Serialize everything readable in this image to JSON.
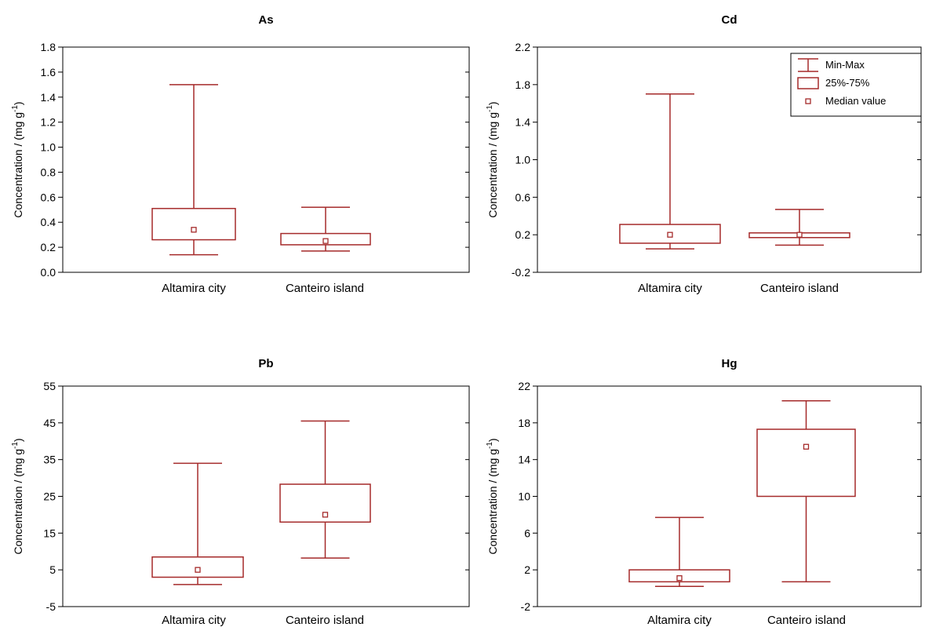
{
  "colors": {
    "box": "#a52a2a",
    "frame": "#000000",
    "background": "#ffffff"
  },
  "legend": {
    "location": "top-right of Cd panel",
    "items": [
      {
        "symbol": "whisker",
        "label": "Min-Max"
      },
      {
        "symbol": "box",
        "label": "25%-75%"
      },
      {
        "symbol": "median",
        "label": "Median value"
      }
    ]
  },
  "chart_data": [
    {
      "type": "box",
      "title": "As",
      "ylabel_main": "Concentration / (mg g",
      "ylabel_sup": "-1",
      "ylabel_end": ")",
      "ylim": [
        0,
        1.8
      ],
      "yticks": [
        0.0,
        0.2,
        0.4,
        0.6,
        0.8,
        1.0,
        1.2,
        1.4,
        1.6,
        1.8
      ],
      "ytick_labels": [
        "0.0",
        "0.2",
        "0.4",
        "0.6",
        "0.8",
        "1.0",
        "1.2",
        "1.4",
        "1.6",
        "1.8"
      ],
      "categories": [
        "Altamira city",
        "Canteiro island"
      ],
      "boxes": [
        {
          "min": 0.14,
          "q1": 0.26,
          "median": 0.34,
          "q3": 0.51,
          "max": 1.5
        },
        {
          "min": 0.17,
          "q1": 0.22,
          "median": 0.25,
          "q3": 0.31,
          "max": 0.52
        }
      ]
    },
    {
      "type": "box",
      "title": "Cd",
      "ylabel_main": "Concentration / (mg g",
      "ylabel_sup": "-1",
      "ylabel_end": ")",
      "ylim": [
        -0.2,
        2.2
      ],
      "yticks": [
        -0.2,
        0.2,
        0.6,
        1.0,
        1.4,
        1.8,
        2.2
      ],
      "ytick_labels": [
        "-0.2",
        "0.2",
        "0.6",
        "1.0",
        "1.4",
        "1.8",
        "2.2"
      ],
      "categories": [
        "Altamira city",
        "Canteiro island"
      ],
      "boxes": [
        {
          "min": 0.05,
          "q1": 0.11,
          "median": 0.2,
          "q3": 0.31,
          "max": 1.7
        },
        {
          "min": 0.09,
          "q1": 0.17,
          "median": 0.2,
          "q3": 0.22,
          "max": 0.47
        }
      ]
    },
    {
      "type": "box",
      "title": "Pb",
      "ylabel_main": "Concentration / (mg g",
      "ylabel_sup": "-1",
      "ylabel_end": ")",
      "ylim": [
        -5,
        55
      ],
      "yticks": [
        -5,
        5,
        15,
        25,
        35,
        45,
        55
      ],
      "ytick_labels": [
        "-5",
        "5",
        "15",
        "25",
        "35",
        "45",
        "55"
      ],
      "categories": [
        "Altamira city",
        "Canteiro island"
      ],
      "boxes": [
        {
          "min": 1.0,
          "q1": 3.0,
          "median": 5.0,
          "q3": 8.5,
          "max": 34.0
        },
        {
          "min": 8.2,
          "q1": 18.0,
          "median": 20.0,
          "q3": 28.3,
          "max": 45.5
        }
      ]
    },
    {
      "type": "box",
      "title": "Hg",
      "ylabel_main": "Concentration / (mg g",
      "ylabel_sup": "-1",
      "ylabel_end": ")",
      "ylim": [
        -2,
        22
      ],
      "yticks": [
        -2,
        2,
        6,
        10,
        14,
        18,
        22
      ],
      "ytick_labels": [
        "-2",
        "2",
        "6",
        "10",
        "14",
        "18",
        "22"
      ],
      "categories": [
        "Altamira city",
        "Canteiro island"
      ],
      "boxes": [
        {
          "min": 0.2,
          "q1": 0.7,
          "median": 1.1,
          "q3": 2.0,
          "max": 7.7
        },
        {
          "min": 0.7,
          "q1": 10.0,
          "median": 15.4,
          "q3": 17.3,
          "max": 20.4
        }
      ]
    }
  ]
}
